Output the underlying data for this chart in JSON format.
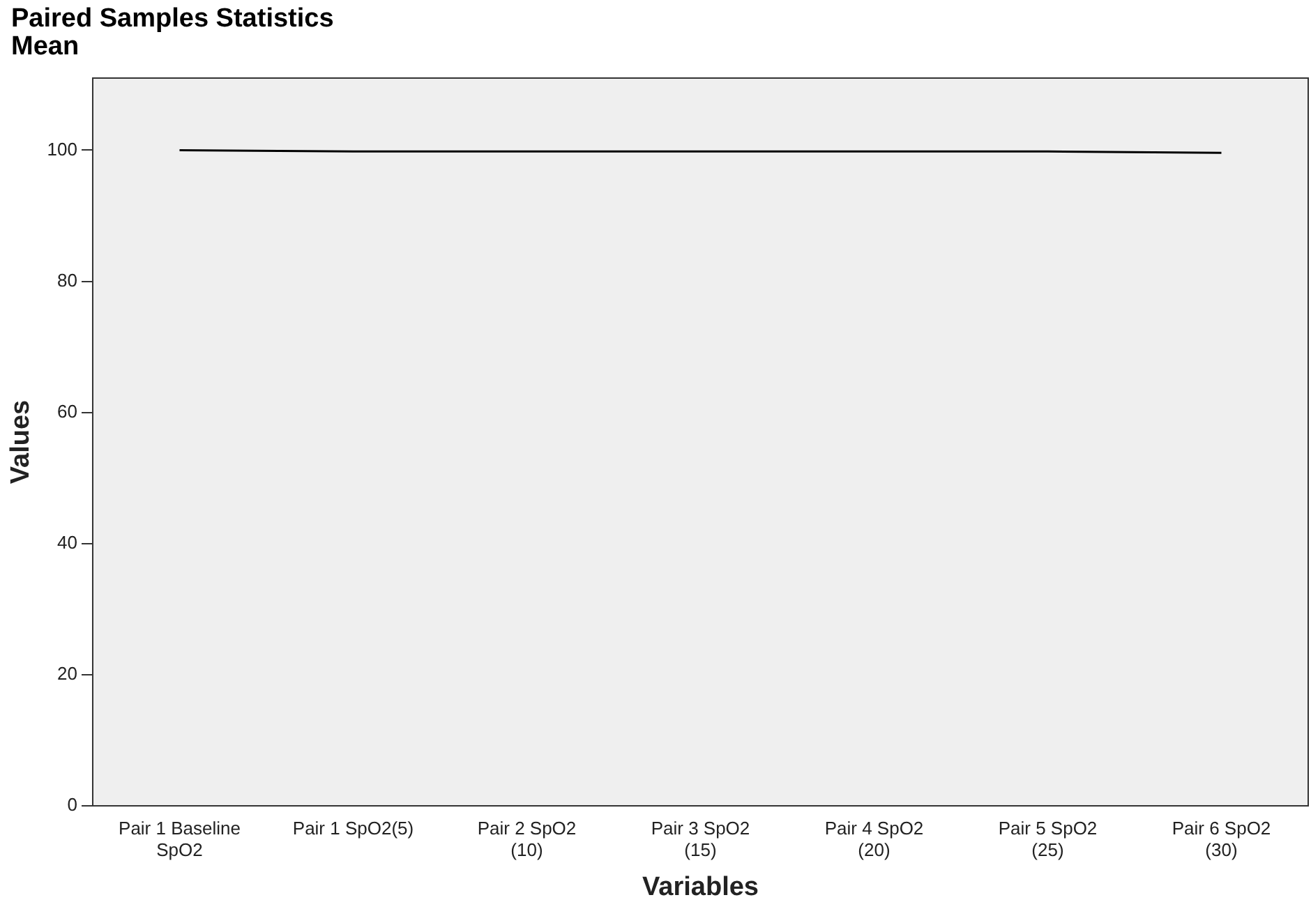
{
  "chart_data": {
    "type": "line",
    "title": "Paired Samples Statistics",
    "subtitle": "Mean",
    "xlabel": "Variables",
    "ylabel": "Values",
    "categories": [
      "Pair 1 Baseline\nSpO2",
      "Pair 1 SpO2(5)",
      "Pair 2 SpO2\n(10)",
      "Pair 3 SpO2\n(15)",
      "Pair 4 SpO2\n(20)",
      "Pair 5 SpO2\n(25)",
      "Pair 6 SpO2\n(30)"
    ],
    "series": [
      {
        "color": "#000000",
        "values": [
          100,
          99.8,
          99.8,
          99.8,
          99.8,
          99.8,
          99.6
        ]
      }
    ],
    "ylim": [
      0,
      111
    ],
    "yticks": [
      0,
      20,
      40,
      60,
      80,
      100
    ],
    "grid": false,
    "legend": false,
    "marker": "none",
    "line_style": "solid"
  }
}
